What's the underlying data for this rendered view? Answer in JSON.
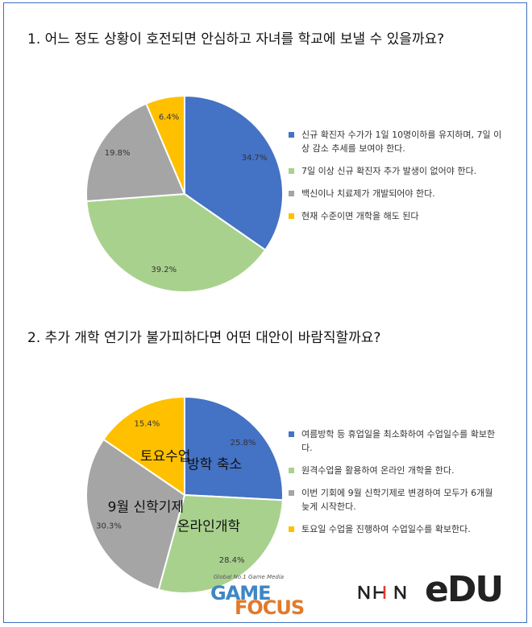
{
  "chart_data": [
    {
      "type": "pie",
      "title": "1. 어느 정도 상황이 호전되면 안심하고 자녀를 학교에 보낼 수 있을까요?",
      "categories": [
        "신규 확진자 수가가 1일 10명이하를 유지하며, 7일 이상 감소 추세를 보여야 한다.",
        "7일 이상 신규 확진자 추가 발생이 없어야 한다.",
        "백신이나 치료제가 개발되어야 한다.",
        "현재 수준이면 개학을 해도 된다"
      ],
      "values": [
        34.7,
        39.2,
        19.8,
        6.4
      ],
      "data_labels": [
        "34.7%",
        "39.2%",
        "19.8%",
        "6.4%"
      ],
      "colors": [
        "#4472c4",
        "#a9d18e",
        "#a5a5a5",
        "#ffc000"
      ],
      "slice_labels": [],
      "legend": "right"
    },
    {
      "type": "pie",
      "title": "2. 추가 개학 연기가 불가피하다면 어떤 대안이 바람직할까요?",
      "categories": [
        "여름방학 등 휴업일을 최소화하여 수업일수를 확보한다.",
        "원격수업을 활용하여 온라인 개학을 한다.",
        "이번 기회에 9월 신학기제로 변경하여 모두가 6개월 늦게 시작한다.",
        "토요일 수업을 진행하여 수업일수를 확보한다."
      ],
      "values": [
        25.8,
        28.4,
        30.3,
        15.4
      ],
      "data_labels": [
        "25.8%",
        "28.4%",
        "30.3%",
        "15.4%"
      ],
      "colors": [
        "#4472c4",
        "#a9d18e",
        "#a5a5a5",
        "#ffc000"
      ],
      "slice_labels": [
        "방학 축소",
        "온라인개학",
        "9월 신학기제",
        "토요수업"
      ],
      "legend": "right"
    }
  ],
  "logos": {
    "game_focus_tagline": "Global No.1 Game Media",
    "game_focus_word1": "GAME",
    "game_focus_word2": "FOCUS",
    "edu_text": "eDU"
  }
}
